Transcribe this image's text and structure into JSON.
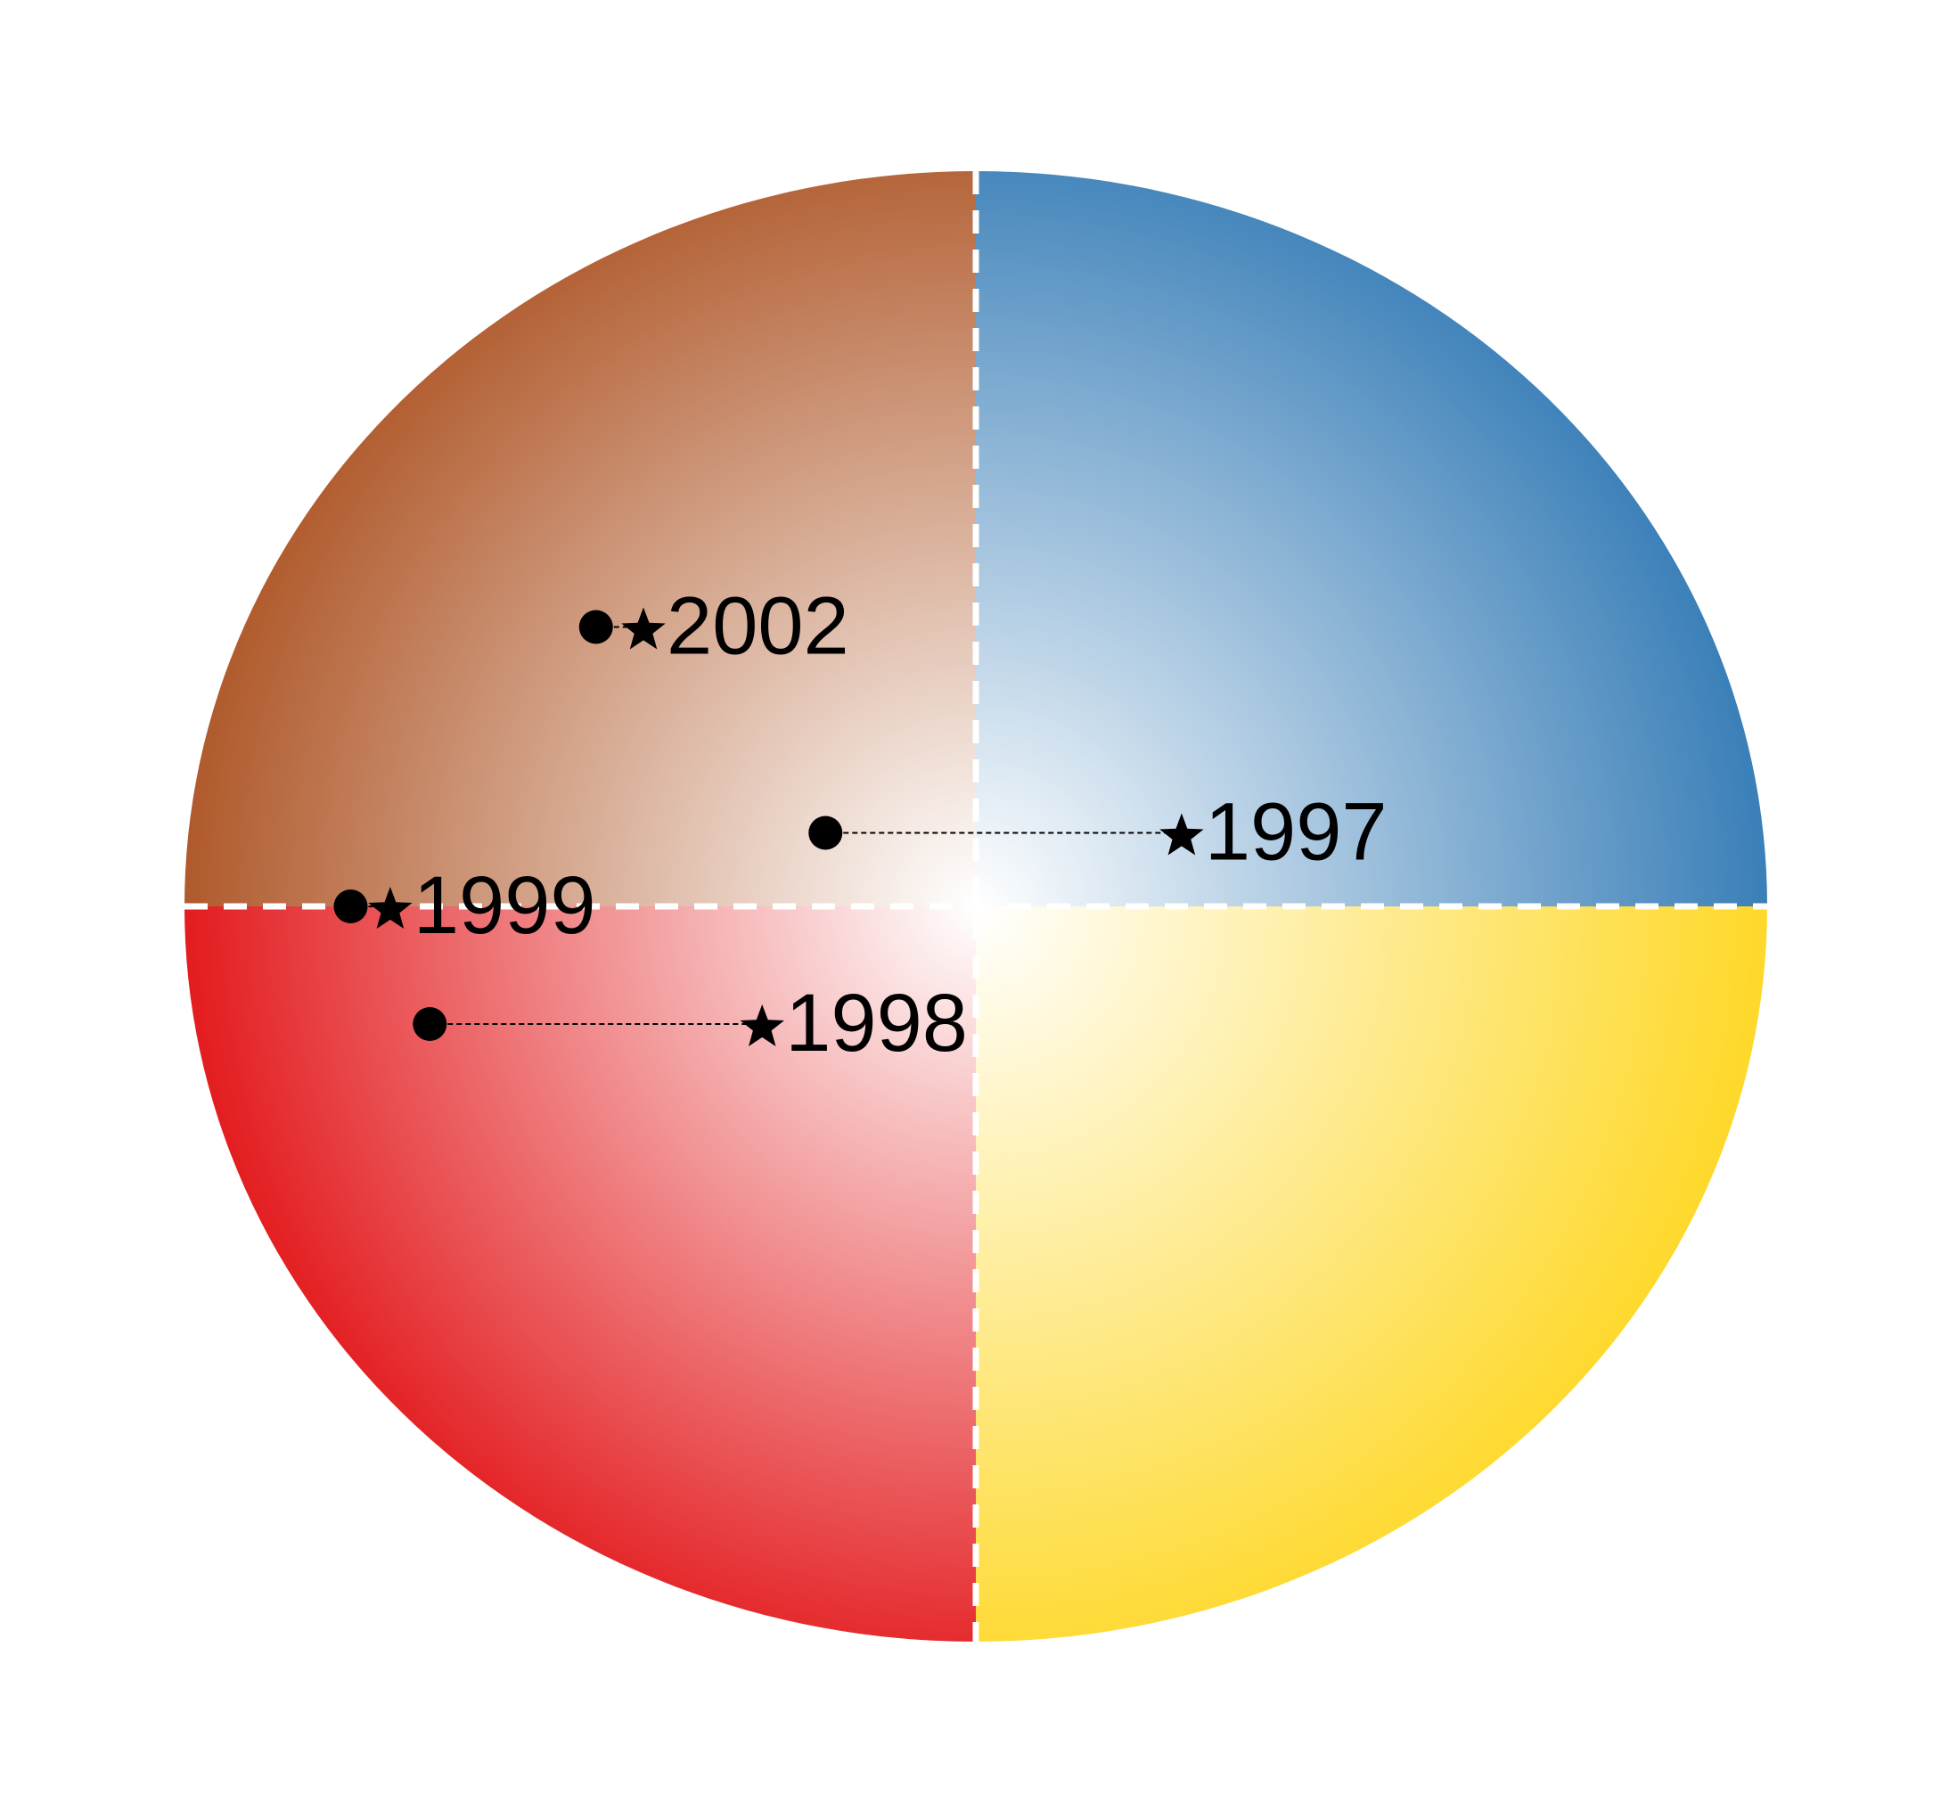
{
  "chart_data": {
    "type": "scatter",
    "title": "",
    "xlabel": "",
    "ylabel": "",
    "xlim": [
      -1,
      1
    ],
    "ylim": [
      -1,
      1
    ],
    "grid": false,
    "quadrant_divider_style": "dashed",
    "quadrants": [
      {
        "position": "top-left",
        "color": "#b05a2c"
      },
      {
        "position": "top-right",
        "color": "#3a7fb8"
      },
      {
        "position": "bottom-left",
        "color": "#e31c1f"
      },
      {
        "position": "bottom-right",
        "color": "#fed829"
      }
    ],
    "marker_legend": {
      "start_marker": "circle",
      "end_marker": "star"
    },
    "points": [
      {
        "label": "2002",
        "start": [
          -0.48,
          0.38
        ],
        "end": [
          -0.42,
          0.38
        ]
      },
      {
        "label": "1997",
        "start": [
          -0.19,
          0.1
        ],
        "end": [
          0.26,
          0.1
        ]
      },
      {
        "label": "1999",
        "start": [
          -0.79,
          0.0
        ],
        "end": [
          -0.74,
          0.0
        ]
      },
      {
        "label": "1998",
        "start": [
          -0.69,
          -0.16
        ],
        "end": [
          -0.27,
          -0.16
        ]
      }
    ]
  }
}
